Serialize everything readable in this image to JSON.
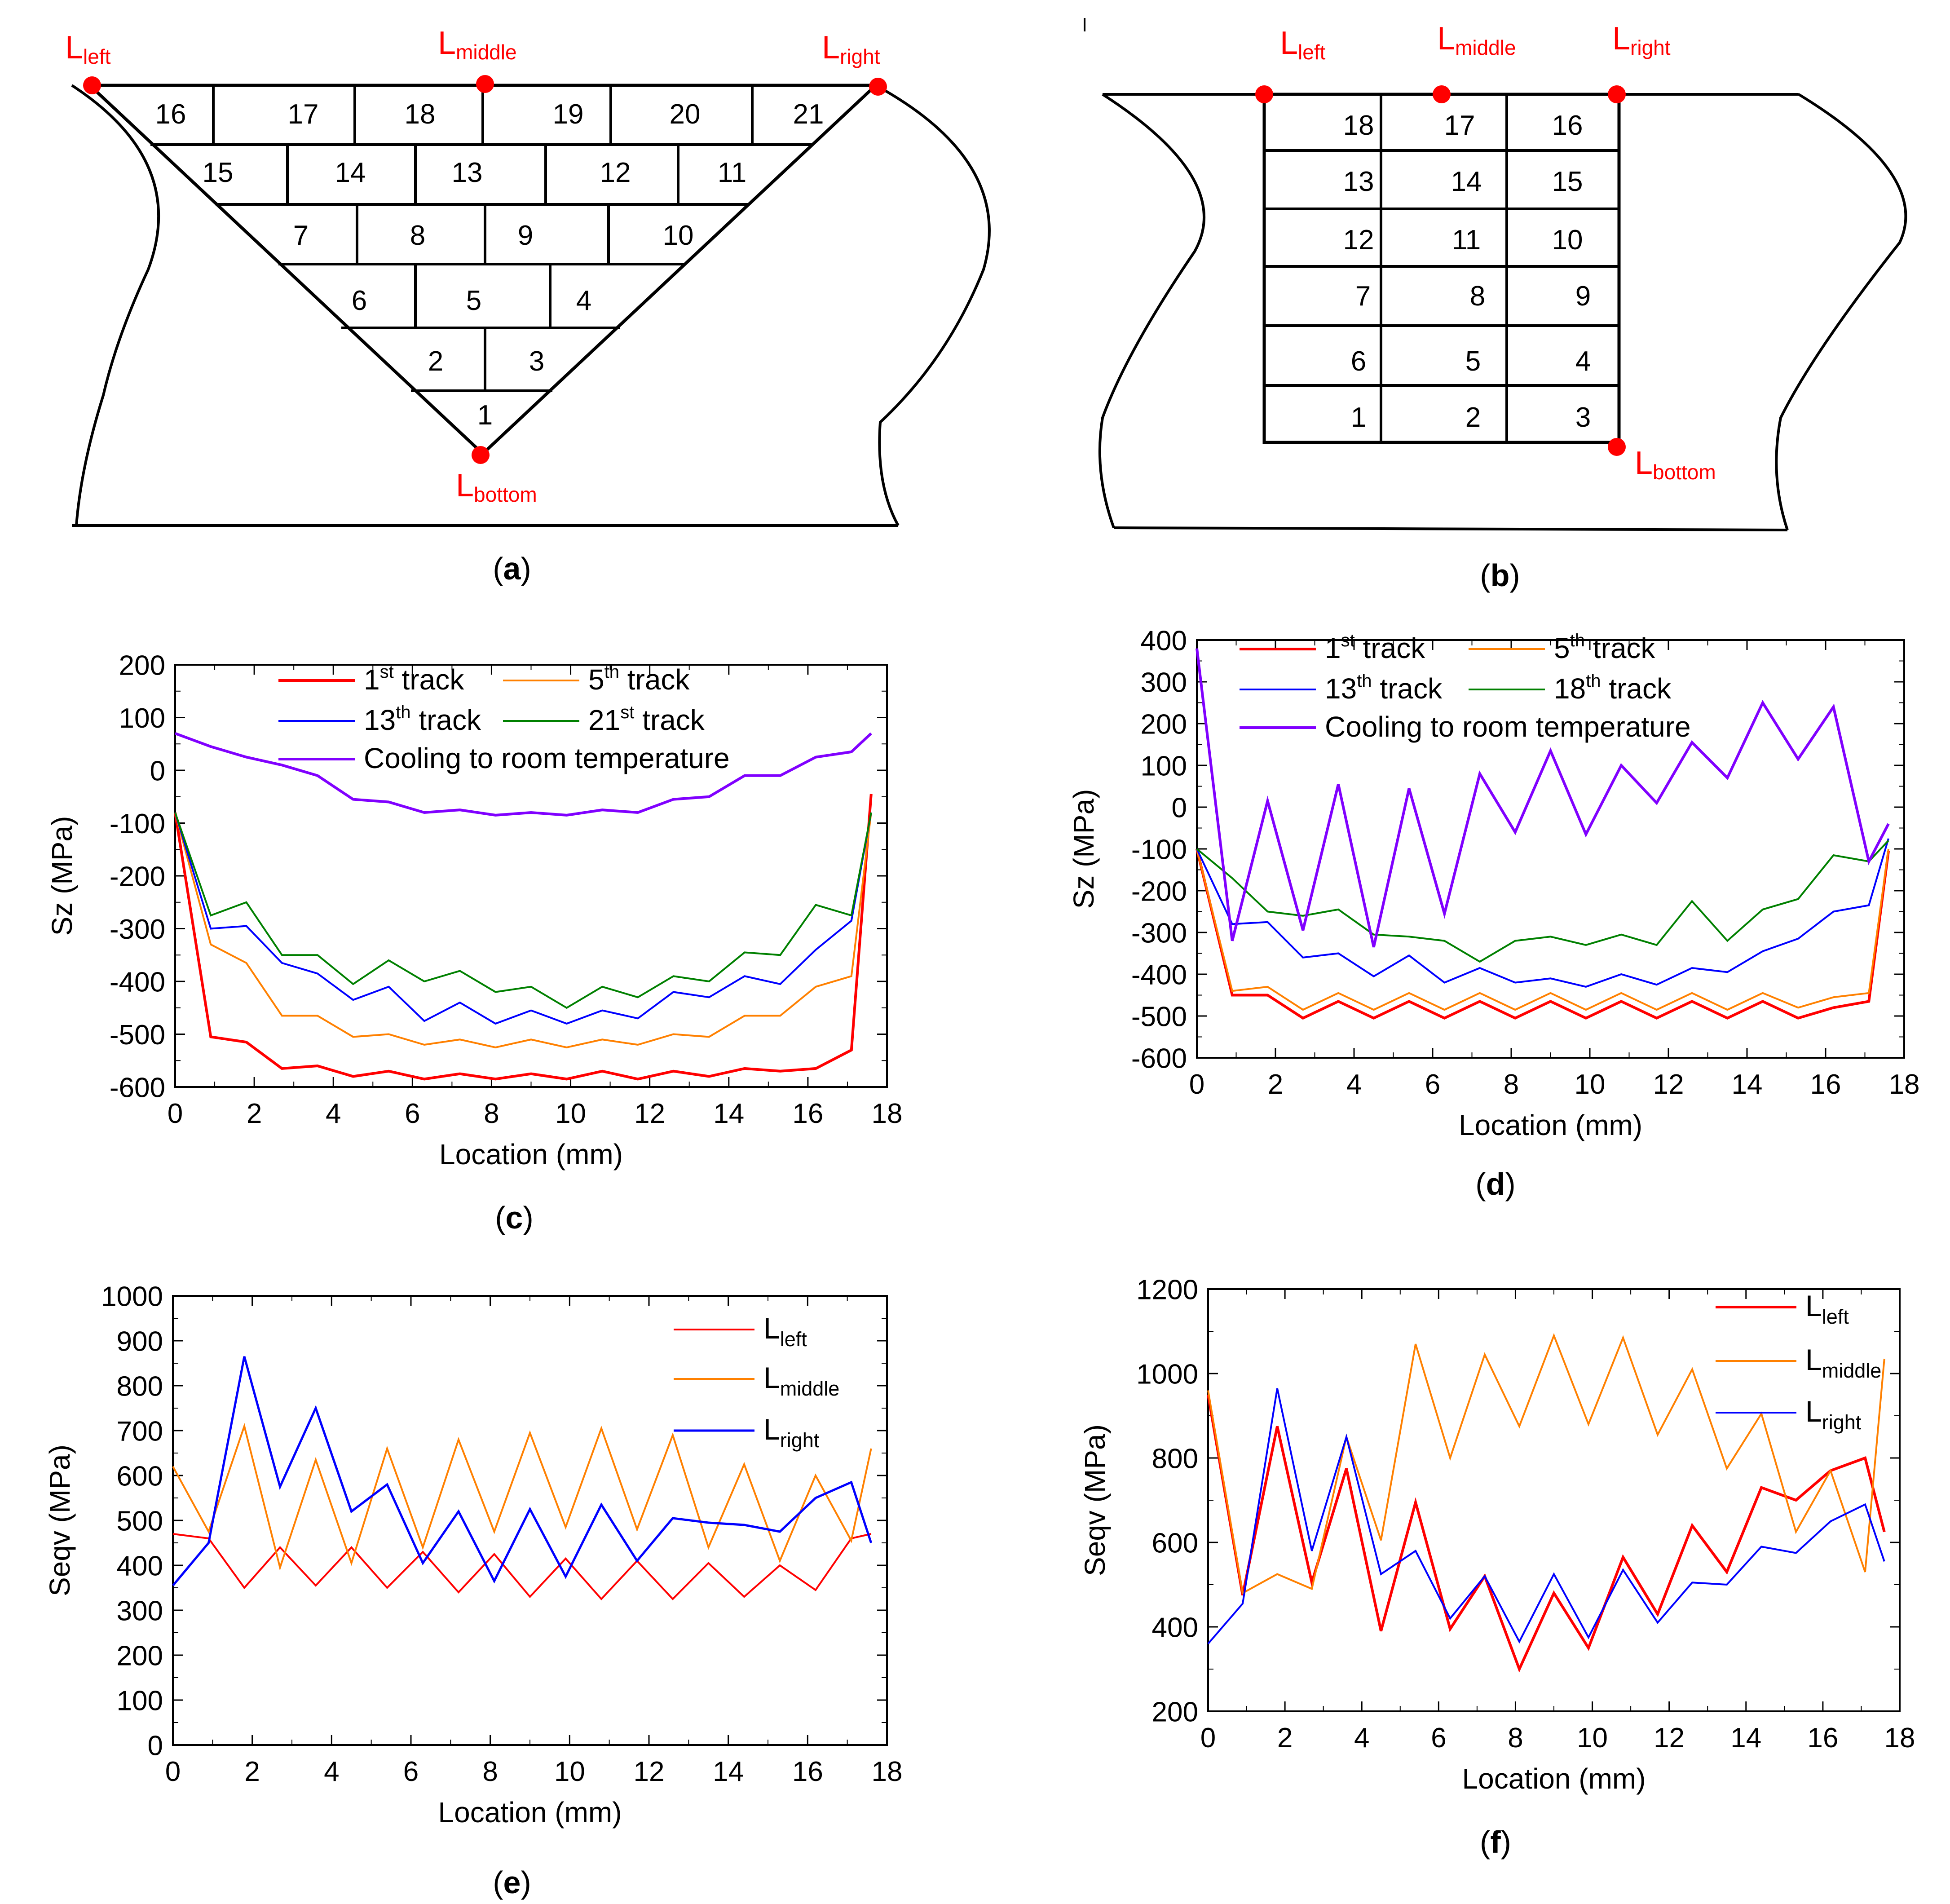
{
  "panel_labels": {
    "a": "a",
    "b": "b",
    "c": "c",
    "d": "d",
    "e": "e",
    "f": "f"
  },
  "diagram_a": {
    "points": {
      "left": "L",
      "left_sub": "left",
      "middle": "L",
      "middle_sub": "middle",
      "right": "L",
      "right_sub": "right",
      "bottom": "L",
      "bottom_sub": "bottom"
    },
    "rows": [
      [
        "16",
        "17",
        "18",
        "19",
        "20",
        "21"
      ],
      [
        "15",
        "14",
        "13",
        "12",
        "11"
      ],
      [
        "7",
        "8",
        "9",
        "10"
      ],
      [
        "6",
        "5",
        "4"
      ],
      [
        "2",
        "3"
      ],
      [
        "1"
      ]
    ]
  },
  "diagram_b": {
    "points": {
      "left": "L",
      "left_sub": "left",
      "middle": "L",
      "middle_sub": "middle",
      "right": "L",
      "right_sub": "right",
      "bottom": "L",
      "bottom_sub": "bottom"
    },
    "rows": [
      [
        "18",
        "17",
        "16"
      ],
      [
        "13",
        "14",
        "15"
      ],
      [
        "12",
        "11",
        "10"
      ],
      [
        "7",
        "8",
        "9"
      ],
      [
        "6",
        "5",
        "4"
      ],
      [
        "1",
        "2",
        "3"
      ]
    ]
  },
  "colors": {
    "red": "#ff0000",
    "orange": "#ff8000",
    "blue": "#0000ff",
    "green": "#008000",
    "purple": "#8000ff"
  },
  "chart_data": [
    {
      "id": "c",
      "type": "line",
      "xlabel": "Location (mm)",
      "ylabel": "Sz (MPa)",
      "xlim": [
        0,
        18
      ],
      "ylim": [
        -600,
        200
      ],
      "xticks": [
        "0",
        "2",
        "4",
        "6",
        "8",
        "10",
        "12",
        "14",
        "16",
        "18"
      ],
      "yticks": [
        "-600",
        "-500",
        "-400",
        "-300",
        "-200",
        "-100",
        "0",
        "100",
        "200"
      ],
      "x": [
        0,
        0.9,
        1.8,
        2.7,
        3.6,
        4.5,
        5.4,
        6.3,
        7.2,
        8.1,
        9.0,
        9.9,
        10.8,
        11.7,
        12.6,
        13.5,
        14.4,
        15.3,
        16.2,
        17.1,
        17.6
      ],
      "series": [
        {
          "name": "1st track",
          "label": "1",
          "sup": "st",
          "rest": " track",
          "color": "#ff0000",
          "width": 3,
          "values": [
            -80,
            -505,
            -515,
            -565,
            -560,
            -580,
            -570,
            -585,
            -575,
            -585,
            -575,
            -585,
            -570,
            -585,
            -570,
            -580,
            -565,
            -570,
            -565,
            -530,
            -45
          ]
        },
        {
          "name": "5th track",
          "label": "5",
          "sup": "th",
          "rest": " track",
          "color": "#ff8000",
          "width": 2,
          "values": [
            -80,
            -330,
            -365,
            -465,
            -465,
            -505,
            -500,
            -520,
            -510,
            -525,
            -510,
            -525,
            -510,
            -520,
            -500,
            -505,
            -465,
            -465,
            -410,
            -390,
            -80
          ]
        },
        {
          "name": "13th track",
          "label": "13",
          "sup": "th",
          "rest": " track",
          "color": "#0000ff",
          "width": 2,
          "values": [
            -80,
            -300,
            -295,
            -365,
            -385,
            -435,
            -410,
            -475,
            -440,
            -480,
            -455,
            -480,
            -455,
            -470,
            -420,
            -430,
            -390,
            -405,
            -340,
            -285,
            -80
          ]
        },
        {
          "name": "21st track",
          "label": "21",
          "sup": "st",
          "rest": " track",
          "color": "#008000",
          "width": 2,
          "values": [
            -80,
            -275,
            -250,
            -350,
            -350,
            -405,
            -360,
            -400,
            -380,
            -420,
            -410,
            -450,
            -410,
            -430,
            -390,
            -400,
            -345,
            -350,
            -255,
            -275,
            -80
          ]
        },
        {
          "name": "Cooling to room temperature",
          "label": "Cooling to room temperature",
          "sup": "",
          "rest": "",
          "color": "#8000ff",
          "width": 3,
          "values": [
            70,
            45,
            25,
            10,
            -10,
            -55,
            -60,
            -80,
            -75,
            -85,
            -80,
            -85,
            -75,
            -80,
            -55,
            -50,
            -10,
            -10,
            25,
            35,
            70
          ]
        }
      ],
      "legend": "top"
    },
    {
      "id": "d",
      "type": "line",
      "xlabel": "Location (mm)",
      "ylabel": "Sz (MPa)",
      "xlim": [
        0,
        18
      ],
      "ylim": [
        -600,
        400
      ],
      "xticks": [
        "0",
        "2",
        "4",
        "6",
        "8",
        "10",
        "12",
        "14",
        "16",
        "18"
      ],
      "yticks": [
        "-600",
        "-500",
        "-400",
        "-300",
        "-200",
        "-100",
        "0",
        "100",
        "200",
        "300",
        "400"
      ],
      "x": [
        0,
        0.9,
        1.8,
        2.7,
        3.6,
        4.5,
        5.4,
        6.3,
        7.2,
        8.1,
        9.0,
        9.9,
        10.8,
        11.7,
        12.6,
        13.5,
        14.4,
        15.3,
        16.2,
        17.1,
        17.6
      ],
      "series": [
        {
          "name": "1st track",
          "label": "1",
          "sup": "st",
          "rest": " track",
          "color": "#ff0000",
          "width": 3,
          "values": [
            -100,
            -450,
            -450,
            -505,
            -465,
            -505,
            -465,
            -505,
            -465,
            -505,
            -465,
            -505,
            -465,
            -505,
            -465,
            -505,
            -465,
            -505,
            -480,
            -465,
            -105
          ]
        },
        {
          "name": "5th track",
          "label": "5",
          "sup": "th",
          "rest": " track",
          "color": "#ff8000",
          "width": 2,
          "values": [
            -100,
            -440,
            -430,
            -485,
            -445,
            -485,
            -445,
            -485,
            -445,
            -485,
            -445,
            -485,
            -445,
            -485,
            -445,
            -485,
            -445,
            -480,
            -455,
            -445,
            -100
          ]
        },
        {
          "name": "13th track",
          "label": "13",
          "sup": "th",
          "rest": " track",
          "color": "#0000ff",
          "width": 2,
          "values": [
            -100,
            -280,
            -275,
            -360,
            -350,
            -405,
            -355,
            -420,
            -385,
            -420,
            -410,
            -430,
            -400,
            -425,
            -385,
            -395,
            -345,
            -315,
            -250,
            -235,
            -75
          ]
        },
        {
          "name": "18th track",
          "label": "18",
          "sup": "th",
          "rest": " track",
          "color": "#008000",
          "width": 2,
          "values": [
            -100,
            -170,
            -250,
            -260,
            -245,
            -305,
            -310,
            -320,
            -370,
            -320,
            -310,
            -330,
            -305,
            -330,
            -225,
            -320,
            -245,
            -220,
            -115,
            -130,
            -80
          ]
        },
        {
          "name": "Cooling to room temperature",
          "label": "Cooling to room temperature",
          "sup": "",
          "rest": "",
          "color": "#8000ff",
          "width": 3,
          "values": [
            380,
            -320,
            15,
            -295,
            55,
            -335,
            45,
            -255,
            80,
            -60,
            135,
            -65,
            100,
            10,
            155,
            70,
            250,
            115,
            240,
            -130,
            -40
          ]
        }
      ],
      "legend": "top"
    },
    {
      "id": "e",
      "type": "line",
      "xlabel": "Location (mm)",
      "ylabel": "Seqv (MPa)",
      "xlim": [
        0,
        18
      ],
      "ylim": [
        0,
        1000
      ],
      "xticks": [
        "0",
        "2",
        "4",
        "6",
        "8",
        "10",
        "12",
        "14",
        "16",
        "18"
      ],
      "yticks": [
        "0",
        "100",
        "200",
        "300",
        "400",
        "500",
        "600",
        "700",
        "800",
        "900",
        "1000"
      ],
      "x": [
        0,
        0.9,
        1.8,
        2.7,
        3.6,
        4.5,
        5.4,
        6.3,
        7.2,
        8.1,
        9.0,
        9.9,
        10.8,
        11.7,
        12.6,
        13.5,
        14.4,
        15.3,
        16.2,
        17.1,
        17.6
      ],
      "series": [
        {
          "name": "Lleft",
          "label": "L",
          "sub": "left",
          "color": "#ff0000",
          "width": 2,
          "values": [
            470,
            460,
            350,
            440,
            355,
            440,
            350,
            430,
            340,
            425,
            330,
            415,
            325,
            410,
            325,
            405,
            330,
            400,
            345,
            460,
            470
          ]
        },
        {
          "name": "Lmiddle",
          "label": "L",
          "sub": "middle",
          "color": "#ff8000",
          "width": 2,
          "values": [
            620,
            475,
            710,
            395,
            635,
            405,
            660,
            440,
            680,
            475,
            695,
            485,
            705,
            480,
            690,
            440,
            625,
            410,
            600,
            455,
            660
          ]
        },
        {
          "name": "Lright",
          "label": "L",
          "sub": "right",
          "color": "#0000ff",
          "width": 2.5,
          "values": [
            355,
            450,
            865,
            575,
            750,
            520,
            580,
            405,
            520,
            365,
            525,
            375,
            535,
            410,
            505,
            495,
            490,
            475,
            550,
            585,
            450
          ]
        }
      ],
      "legend": "top-right"
    },
    {
      "id": "f",
      "type": "line",
      "xlabel": "Location (mm)",
      "ylabel": "Seqv (MPa)",
      "xlim": [
        0,
        18
      ],
      "ylim": [
        200,
        1200
      ],
      "xticks": [
        "0",
        "2",
        "4",
        "6",
        "8",
        "10",
        "12",
        "14",
        "16",
        "18"
      ],
      "yticks": [
        "200",
        "400",
        "600",
        "800",
        "1000",
        "1200"
      ],
      "x": [
        0,
        0.9,
        1.8,
        2.7,
        3.6,
        4.5,
        5.4,
        6.3,
        7.2,
        8.1,
        9.0,
        9.9,
        10.8,
        11.7,
        12.6,
        13.5,
        14.4,
        15.3,
        16.2,
        17.1,
        17.6
      ],
      "series": [
        {
          "name": "Lleft",
          "label": "L",
          "sub": "left",
          "color": "#ff0000",
          "width": 3,
          "values": [
            950,
            475,
            875,
            505,
            775,
            390,
            695,
            395,
            520,
            300,
            480,
            350,
            565,
            430,
            640,
            530,
            730,
            700,
            770,
            800,
            625
          ]
        },
        {
          "name": "Lmiddle",
          "label": "L",
          "sub": "middle",
          "color": "#ff8000",
          "width": 2,
          "values": [
            960,
            480,
            525,
            490,
            850,
            605,
            1070,
            800,
            1045,
            875,
            1090,
            880,
            1085,
            855,
            1010,
            775,
            905,
            625,
            770,
            530,
            1035
          ]
        },
        {
          "name": "Lright",
          "label": "L",
          "sub": "right",
          "color": "#0000ff",
          "width": 2,
          "values": [
            360,
            455,
            965,
            580,
            850,
            525,
            580,
            420,
            520,
            365,
            525,
            375,
            535,
            410,
            505,
            500,
            590,
            575,
            650,
            690,
            555
          ]
        }
      ],
      "legend": "top-right"
    }
  ]
}
